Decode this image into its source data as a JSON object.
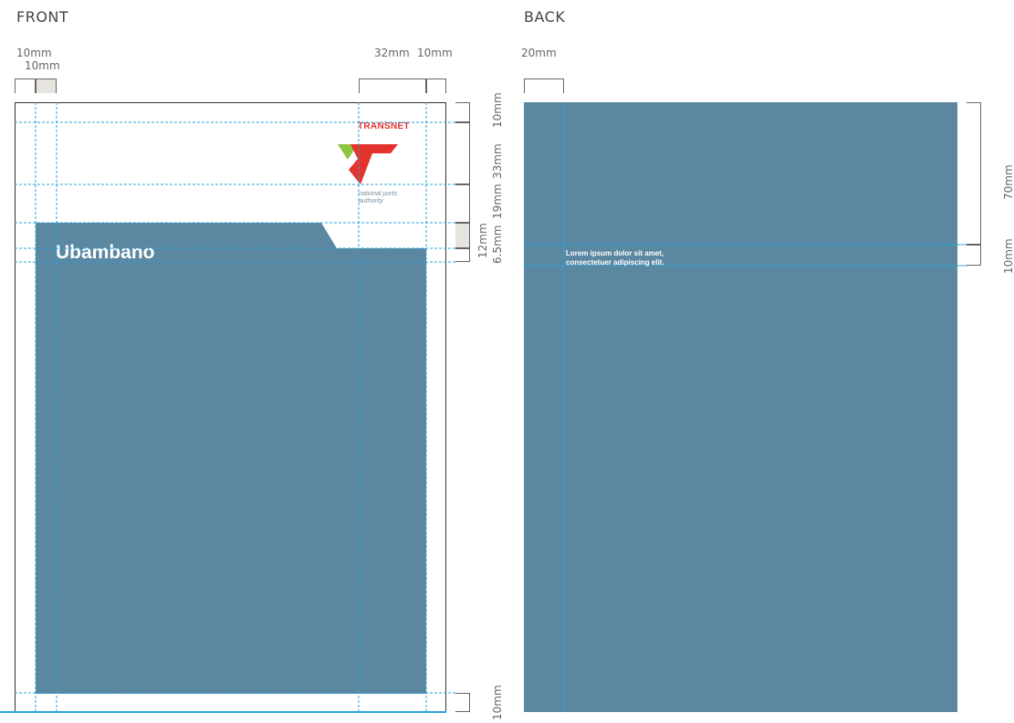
{
  "front": {
    "heading": "FRONT",
    "title": "Ubambano",
    "logo": {
      "wordmark": "TRANSNET",
      "line1": "national ports",
      "line2": "authority"
    },
    "dims_top": {
      "left_outer": "10mm",
      "left_inner": "10mm",
      "right_a": "32mm",
      "right_b": "10mm"
    },
    "dims_right": {
      "d1": "10mm",
      "d2": "33mm",
      "d3": "19mm",
      "d4": "12mm",
      "d5": "6.5mm",
      "bottom": "10mm"
    }
  },
  "back": {
    "heading": "BACK",
    "body_line1": "Lorem ipsum dolor sit amet,",
    "body_line2": "consectetuer adipiscing elit.",
    "dims_top": {
      "left": "20mm"
    },
    "dims_right": {
      "upper": "70mm",
      "lower": "10mm"
    }
  },
  "colors": {
    "panel": "#5b87a0",
    "guide": "#29a3dc",
    "logo_red": "#e4332d",
    "logo_green": "#8dc63f"
  }
}
